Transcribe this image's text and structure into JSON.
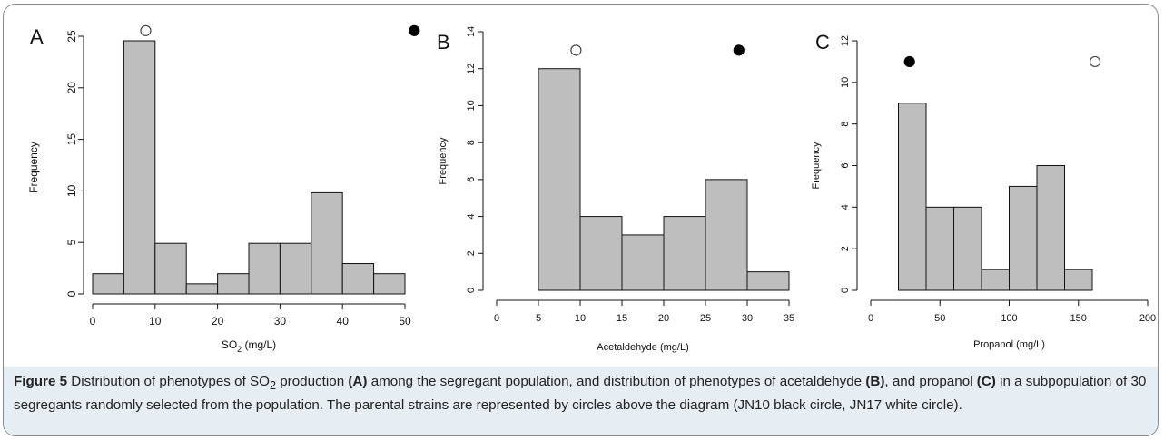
{
  "caption": {
    "figure_label": "Figure 5",
    "seg1": " Distribution of phenotypes of SO",
    "seg1_sub": "2",
    "seg2": " production ",
    "paren_a": "(A)",
    "seg3": " among the segregant population, and distribution of phenotypes of acetaldehyde ",
    "paren_b": "(B)",
    "seg4": ", and propanol ",
    "paren_c": "(C)",
    "seg5": " in a subpopulation of 30 segregants randomly selected from the population. The parental strains are represented by circles above the diagram (JN10 black circle, JN17 white circle)."
  },
  "colors": {
    "bar_fill": "#bebebe",
    "caption_band": "#e6eef4",
    "ink": "#111111"
  },
  "chart_data": [
    {
      "type": "bar",
      "panel_label": "A",
      "bins": [
        [
          0,
          5
        ],
        [
          5,
          10
        ],
        [
          10,
          15
        ],
        [
          15,
          20
        ],
        [
          20,
          25
        ],
        [
          25,
          30
        ],
        [
          30,
          35
        ],
        [
          35,
          40
        ],
        [
          40,
          45
        ],
        [
          45,
          50
        ]
      ],
      "values": [
        2,
        25,
        5,
        1,
        2,
        5,
        5,
        10,
        3,
        2
      ],
      "xlabel_main": "SO",
      "xlabel_sub": "2",
      "xlabel_tail": " (mg/L)",
      "ylabel": "Frequency",
      "xticks": [
        "0",
        "10",
        "20",
        "30",
        "40",
        "50"
      ],
      "yticks": [
        "0",
        "5",
        "10",
        "15",
        "20",
        "25"
      ],
      "xlim": [
        0,
        50
      ],
      "ylim": [
        0,
        25
      ],
      "parents": [
        {
          "strain": "JN17",
          "marker": "white circle",
          "x": 8.5,
          "y": 26
        },
        {
          "strain": "JN10",
          "marker": "black circle",
          "x": 51.5,
          "y": 26
        }
      ]
    },
    {
      "type": "bar",
      "panel_label": "B",
      "bins": [
        [
          5,
          10
        ],
        [
          10,
          15
        ],
        [
          15,
          20
        ],
        [
          20,
          25
        ],
        [
          25,
          30
        ],
        [
          30,
          35
        ]
      ],
      "values": [
        12,
        4,
        3,
        4,
        6,
        1
      ],
      "xlabel_main": "Acetaldehyde (mg/L)",
      "xlabel_sub": "",
      "xlabel_tail": "",
      "ylabel": "Frequency",
      "xticks": [
        "0",
        "5",
        "10",
        "15",
        "20",
        "25",
        "30",
        "35"
      ],
      "yticks": [
        "0",
        "2",
        "4",
        "6",
        "8",
        "10",
        "12",
        "14"
      ],
      "xlim": [
        0,
        35
      ],
      "ylim": [
        0,
        14
      ],
      "parents": [
        {
          "strain": "JN17",
          "marker": "white circle",
          "x": 9.5,
          "y": 13
        },
        {
          "strain": "JN10",
          "marker": "black circle",
          "x": 29,
          "y": 13
        }
      ]
    },
    {
      "type": "bar",
      "panel_label": "C",
      "bins": [
        [
          20,
          40
        ],
        [
          40,
          60
        ],
        [
          60,
          80
        ],
        [
          80,
          100
        ],
        [
          100,
          120
        ],
        [
          120,
          140
        ],
        [
          140,
          160
        ]
      ],
      "values": [
        9,
        4,
        4,
        1,
        5,
        6,
        1
      ],
      "xlabel_main": "Propanol (mg/L)",
      "xlabel_sub": "",
      "xlabel_tail": "",
      "ylabel": "Frequency",
      "xticks": [
        "0",
        "50",
        "100",
        "150",
        "200"
      ],
      "yticks": [
        "0",
        "2",
        "4",
        "6",
        "8",
        "10",
        "12"
      ],
      "xlim": [
        0,
        200
      ],
      "ylim": [
        0,
        12
      ],
      "parents": [
        {
          "strain": "JN10",
          "marker": "black circle",
          "x": 28,
          "y": 11
        },
        {
          "strain": "JN17",
          "marker": "white circle",
          "x": 162,
          "y": 11
        }
      ]
    }
  ]
}
